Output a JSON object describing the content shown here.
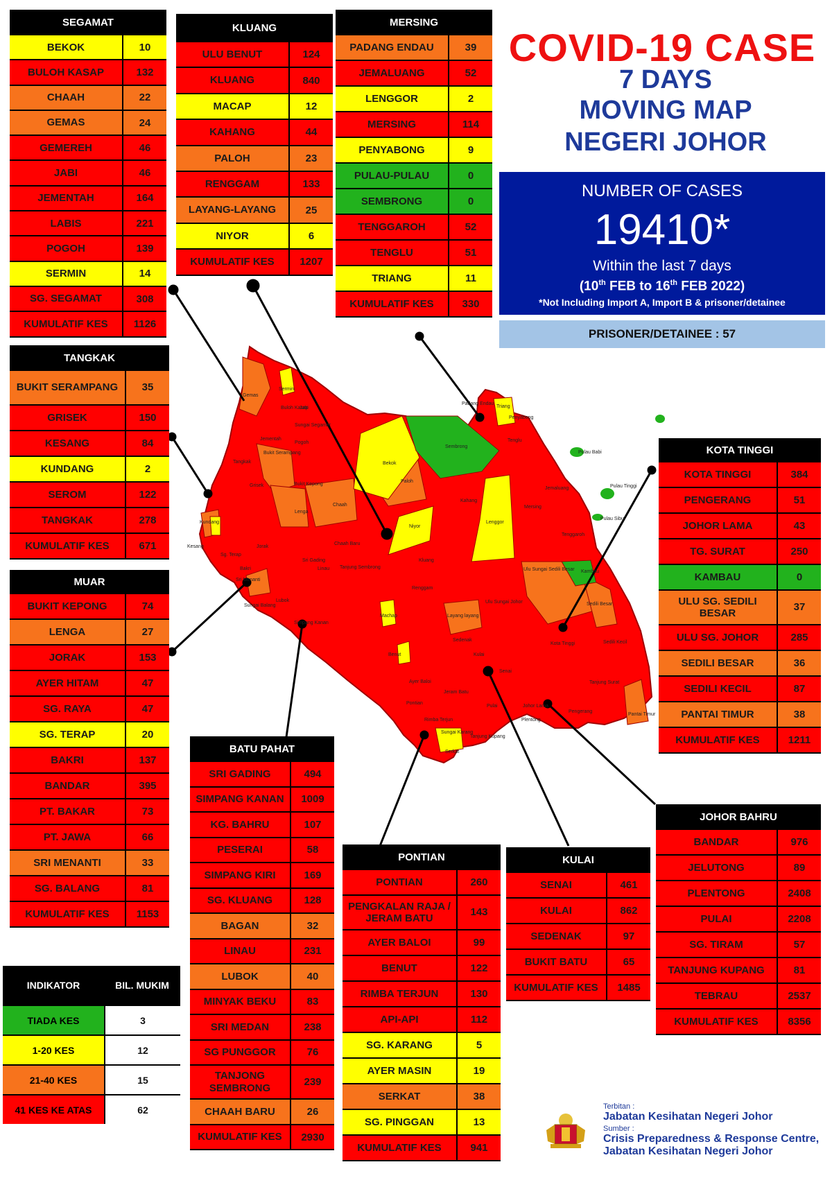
{
  "title": {
    "line1": "COVID-19 CASE",
    "line2": "7 DAYS",
    "line3": "MOVING MAP",
    "line4": "NEGERI JOHOR"
  },
  "summary": {
    "label": "NUMBER OF CASES",
    "total": "19410*",
    "period": "Within the last 7 days",
    "range_open": "(10",
    "range_sup1": "th",
    "range_mid": " FEB to 16",
    "range_sup2": "th",
    "range_close": " FEB 2022)",
    "note": "*Not Including Import A, Import B & prisoner/detainee",
    "prisoner": "PRISONER/DETAINEE : 57"
  },
  "colors": {
    "red": "#ff0000",
    "orange": "#f7731c",
    "yellow": "#ffff00",
    "green": "#22b21d",
    "title_red": "#ee1111",
    "title_blue": "#1e3a9a",
    "cases_box": "#001a9c",
    "prisoner_box": "#a3c4e6"
  },
  "districts": {
    "segamat": {
      "name": "SEGAMAT",
      "rows": [
        {
          "name": "BEKOK",
          "value": "10",
          "level": "yellow"
        },
        {
          "name": "BULOH KASAP",
          "value": "132",
          "level": "red"
        },
        {
          "name": "CHAAH",
          "value": "22",
          "level": "orange"
        },
        {
          "name": "GEMAS",
          "value": "24",
          "level": "orange"
        },
        {
          "name": "GEMEREH",
          "value": "46",
          "level": "red"
        },
        {
          "name": "JABI",
          "value": "46",
          "level": "red"
        },
        {
          "name": "JEMENTAH",
          "value": "164",
          "level": "red"
        },
        {
          "name": "LABIS",
          "value": "221",
          "level": "red"
        },
        {
          "name": "POGOH",
          "value": "139",
          "level": "red"
        },
        {
          "name": "SERMIN",
          "value": "14",
          "level": "yellow"
        },
        {
          "name": "SG. SEGAMAT",
          "value": "308",
          "level": "red"
        },
        {
          "name": "KUMULATIF KES",
          "value": "1126",
          "level": "red"
        }
      ]
    },
    "kluang": {
      "name": "KLUANG",
      "rows": [
        {
          "name": "ULU BENUT",
          "value": "124",
          "level": "red"
        },
        {
          "name": "KLUANG",
          "value": "840",
          "level": "red"
        },
        {
          "name": "MACAP",
          "value": "12",
          "level": "yellow"
        },
        {
          "name": "KAHANG",
          "value": "44",
          "level": "red"
        },
        {
          "name": "PALOH",
          "value": "23",
          "level": "orange"
        },
        {
          "name": "RENGGAM",
          "value": "133",
          "level": "red"
        },
        {
          "name": "LAYANG-LAYANG",
          "value": "25",
          "level": "orange"
        },
        {
          "name": "NIYOR",
          "value": "6",
          "level": "yellow"
        },
        {
          "name": "KUMULATIF KES",
          "value": "1207",
          "level": "red"
        }
      ]
    },
    "mersing": {
      "name": "MERSING",
      "rows": [
        {
          "name": "PADANG ENDAU",
          "value": "39",
          "level": "orange"
        },
        {
          "name": "JEMALUANG",
          "value": "52",
          "level": "red"
        },
        {
          "name": "LENGGOR",
          "value": "2",
          "level": "yellow"
        },
        {
          "name": "MERSING",
          "value": "114",
          "level": "red"
        },
        {
          "name": "PENYABONG",
          "value": "9",
          "level": "yellow"
        },
        {
          "name": "PULAU-PULAU",
          "value": "0",
          "level": "green"
        },
        {
          "name": "SEMBRONG",
          "value": "0",
          "level": "green"
        },
        {
          "name": "TENGGAROH",
          "value": "52",
          "level": "red"
        },
        {
          "name": "TENGLU",
          "value": "51",
          "level": "red"
        },
        {
          "name": "TRIANG",
          "value": "11",
          "level": "yellow"
        },
        {
          "name": "KUMULATIF KES",
          "value": "330",
          "level": "red"
        }
      ]
    },
    "tangkak": {
      "name": "TANGKAK",
      "rows": [
        {
          "name": "BUKIT SERAMPANG",
          "value": "35",
          "level": "orange"
        },
        {
          "name": "GRISEK",
          "value": "150",
          "level": "red"
        },
        {
          "name": "KESANG",
          "value": "84",
          "level": "red"
        },
        {
          "name": "KUNDANG",
          "value": "2",
          "level": "yellow"
        },
        {
          "name": "SEROM",
          "value": "122",
          "level": "red"
        },
        {
          "name": "TANGKAK",
          "value": "278",
          "level": "red"
        },
        {
          "name": "KUMULATIF KES",
          "value": "671",
          "level": "red"
        }
      ]
    },
    "muar": {
      "name": "MUAR",
      "rows": [
        {
          "name": "BUKIT KEPONG",
          "value": "74",
          "level": "red"
        },
        {
          "name": "LENGA",
          "value": "27",
          "level": "orange"
        },
        {
          "name": "JORAK",
          "value": "153",
          "level": "red"
        },
        {
          "name": "AYER HITAM",
          "value": "47",
          "level": "red"
        },
        {
          "name": "SG. RAYA",
          "value": "47",
          "level": "red"
        },
        {
          "name": "SG. TERAP",
          "value": "20",
          "level": "yellow"
        },
        {
          "name": "BAKRI",
          "value": "137",
          "level": "red"
        },
        {
          "name": "BANDAR",
          "value": "395",
          "level": "red"
        },
        {
          "name": "PT. BAKAR",
          "value": "73",
          "level": "red"
        },
        {
          "name": "PT. JAWA",
          "value": "66",
          "level": "red"
        },
        {
          "name": "SRI MENANTI",
          "value": "33",
          "level": "orange"
        },
        {
          "name": "SG. BALANG",
          "value": "81",
          "level": "red"
        },
        {
          "name": "KUMULATIF KES",
          "value": "1153",
          "level": "red"
        }
      ]
    },
    "kota_tinggi": {
      "name": "KOTA TINGGI",
      "rows": [
        {
          "name": "KOTA TINGGI",
          "value": "384",
          "level": "red"
        },
        {
          "name": "PENGERANG",
          "value": "51",
          "level": "red"
        },
        {
          "name": "JOHOR LAMA",
          "value": "43",
          "level": "red"
        },
        {
          "name": "TG. SURAT",
          "value": "250",
          "level": "red"
        },
        {
          "name": "KAMBAU",
          "value": "0",
          "level": "green"
        },
        {
          "name": "ULU SG. SEDILI BESAR",
          "value": "37",
          "level": "orange"
        },
        {
          "name": "ULU SG. JOHOR",
          "value": "285",
          "level": "red"
        },
        {
          "name": "SEDILI BESAR",
          "value": "36",
          "level": "orange"
        },
        {
          "name": "SEDILI KECIL",
          "value": "87",
          "level": "red"
        },
        {
          "name": "PANTAI TIMUR",
          "value": "38",
          "level": "orange"
        },
        {
          "name": "KUMULATIF KES",
          "value": "1211",
          "level": "red"
        }
      ]
    },
    "batu_pahat": {
      "name": "BATU PAHAT",
      "rows": [
        {
          "name": "SRI GADING",
          "value": "494",
          "level": "red"
        },
        {
          "name": "SIMPANG KANAN",
          "value": "1009",
          "level": "red"
        },
        {
          "name": "KG. BAHRU",
          "value": "107",
          "level": "red"
        },
        {
          "name": "PESERAI",
          "value": "58",
          "level": "red"
        },
        {
          "name": "SIMPANG KIRI",
          "value": "169",
          "level": "red"
        },
        {
          "name": "SG. KLUANG",
          "value": "128",
          "level": "red"
        },
        {
          "name": "BAGAN",
          "value": "32",
          "level": "orange"
        },
        {
          "name": "LINAU",
          "value": "231",
          "level": "red"
        },
        {
          "name": "LUBOK",
          "value": "40",
          "level": "orange"
        },
        {
          "name": "MINYAK BEKU",
          "value": "83",
          "level": "red"
        },
        {
          "name": "SRI MEDAN",
          "value": "238",
          "level": "red"
        },
        {
          "name": "SG PUNGGOR",
          "value": "76",
          "level": "red"
        },
        {
          "name": "TANJONG SEMBRONG",
          "value": "239",
          "level": "red"
        },
        {
          "name": "CHAAH BARU",
          "value": "26",
          "level": "orange"
        },
        {
          "name": "KUMULATIF KES",
          "value": "2930",
          "level": "red"
        }
      ]
    },
    "pontian": {
      "name": "PONTIAN",
      "rows": [
        {
          "name": "PONTIAN",
          "value": "260",
          "level": "red"
        },
        {
          "name": "PENGKALAN RAJA / JERAM BATU",
          "value": "143",
          "level": "red"
        },
        {
          "name": "AYER BALOI",
          "value": "99",
          "level": "red"
        },
        {
          "name": "BENUT",
          "value": "122",
          "level": "red"
        },
        {
          "name": "RIMBA TERJUN",
          "value": "130",
          "level": "red"
        },
        {
          "name": "API-API",
          "value": "112",
          "level": "red"
        },
        {
          "name": "SG. KARANG",
          "value": "5",
          "level": "yellow"
        },
        {
          "name": "AYER MASIN",
          "value": "19",
          "level": "yellow"
        },
        {
          "name": "SERKAT",
          "value": "38",
          "level": "orange"
        },
        {
          "name": "SG. PINGGAN",
          "value": "13",
          "level": "yellow"
        },
        {
          "name": "KUMULATIF KES",
          "value": "941",
          "level": "red"
        }
      ]
    },
    "kulai": {
      "name": "KULAI",
      "rows": [
        {
          "name": "SENAI",
          "value": "461",
          "level": "red"
        },
        {
          "name": "KULAI",
          "value": "862",
          "level": "red"
        },
        {
          "name": "SEDENAK",
          "value": "97",
          "level": "red"
        },
        {
          "name": "BUKIT BATU",
          "value": "65",
          "level": "red"
        },
        {
          "name": "KUMULATIF KES",
          "value": "1485",
          "level": "red"
        }
      ]
    },
    "johor_bahru": {
      "name": "JOHOR BAHRU",
      "rows": [
        {
          "name": "BANDAR",
          "value": "976",
          "level": "red"
        },
        {
          "name": "JELUTONG",
          "value": "89",
          "level": "red"
        },
        {
          "name": "PLENTONG",
          "value": "2408",
          "level": "red"
        },
        {
          "name": "PULAI",
          "value": "2208",
          "level": "red"
        },
        {
          "name": "SG. TIRAM",
          "value": "57",
          "level": "red"
        },
        {
          "name": "TANJUNG KUPANG",
          "value": "81",
          "level": "red"
        },
        {
          "name": "TEBRAU",
          "value": "2537",
          "level": "red"
        },
        {
          "name": "KUMULATIF KES",
          "value": "8356",
          "level": "red"
        }
      ]
    }
  },
  "legend": {
    "col1": "INDIKATOR",
    "col2": "BIL. MUKIM",
    "items": [
      {
        "label": "TIADA KES",
        "value": "3",
        "level": "green"
      },
      {
        "label": "1-20 KES",
        "value": "12",
        "level": "yellow"
      },
      {
        "label": "21-40 KES",
        "value": "15",
        "level": "orange"
      },
      {
        "label": "41 KES KE ATAS",
        "value": "62",
        "level": "red"
      }
    ]
  },
  "footer": {
    "published_label": "Terbitan :",
    "published_by": "Jabatan Kesihatan Negeri Johor",
    "source_label": "Sumber :",
    "source_line1": "Crisis Preparedness & Response Centre,",
    "source_line2": "Jabatan Kesihatan Negeri Johor"
  },
  "map_labels": {
    "gemas": "Gemas",
    "sermin": "Sermin",
    "jabi": "Jabi",
    "buloh_kasap": "Buloh Kasap",
    "sungai_segamat": "Sungai Segamat",
    "bekok": "Bekok",
    "sembrong": "Sembrong",
    "padang_endau": "Padang Endau",
    "triang": "Triang",
    "penyabong": "Penyabong",
    "tenglu": "Tenglu",
    "pulau_babi": "Pulau Babi",
    "pulau_tinggi": "Pulau Tinggi",
    "pulau_sibu": "Pulau Sibu",
    "jementah": "Jementah",
    "pogoh": "Pogoh",
    "tangkak": "Tangkak",
    "bukit_serampang": "Bukit Serampang",
    "bukit_kepong": "Bukit Kepong",
    "grisek": "Grisek",
    "lenga": "Lenga",
    "chaah": "Chaah",
    "paloh": "Paloh",
    "kahang": "Kahang",
    "lenggor": "Lenggor",
    "mersing": "Mersing",
    "jemaluang": "Jemaluang",
    "tenggaroh": "Tenggaroh",
    "niyor": "Niyor",
    "kluang": "Kluang",
    "chaah_baru": "Chaah Baru",
    "kundang": "Kundang",
    "kesang": "Kesang",
    "sg_terap": "Sg. Terap",
    "bakri": "Bakri",
    "jorak": "Jorak",
    "sri_menanti": "Sri Menanti",
    "ulu_sedili": "Ulu Sungai Sedili Besar",
    "kambau": "Kambau",
    "sedili_besar": "Sedili Besar",
    "linau": "Linau",
    "sri_gading": "Sri Gading",
    "tanjung_sembrong": "Tanjung Sembrong",
    "renggam": "Renggam",
    "ulu_sg_johor": "Ulu Sungai Johor",
    "macap": "Machap",
    "layang": "Layang layang",
    "lubok": "Lubok",
    "sg_balang": "Sungai Balang",
    "simpang_kanan": "Simpang Kanan",
    "sedenak": "Sedenak",
    "kota_tinggi": "Kota Tinggi",
    "sedili_kecil": "Sedili Kecil",
    "benut": "Benut",
    "kulai": "Kulai",
    "senai": "Senai",
    "tg_surat": "Tanjung Surat",
    "ayer_baloi": "Ayer Baloi",
    "pontian": "Pontian",
    "pulai": "Pulai",
    "johor_lama": "Johor Lama",
    "pantai_timur": "Pantai Timur",
    "rimba_terjun": "Rimba Terjun",
    "sg_karang": "Sungai Karang",
    "serkat": "Serkat",
    "tanjung_kupang": "Tanjung Kupang",
    "plentong": "Plentong",
    "pengerang": "Pengerang",
    "jeram_batu": "Jeram Batu",
    "mukim": "Mukim"
  }
}
